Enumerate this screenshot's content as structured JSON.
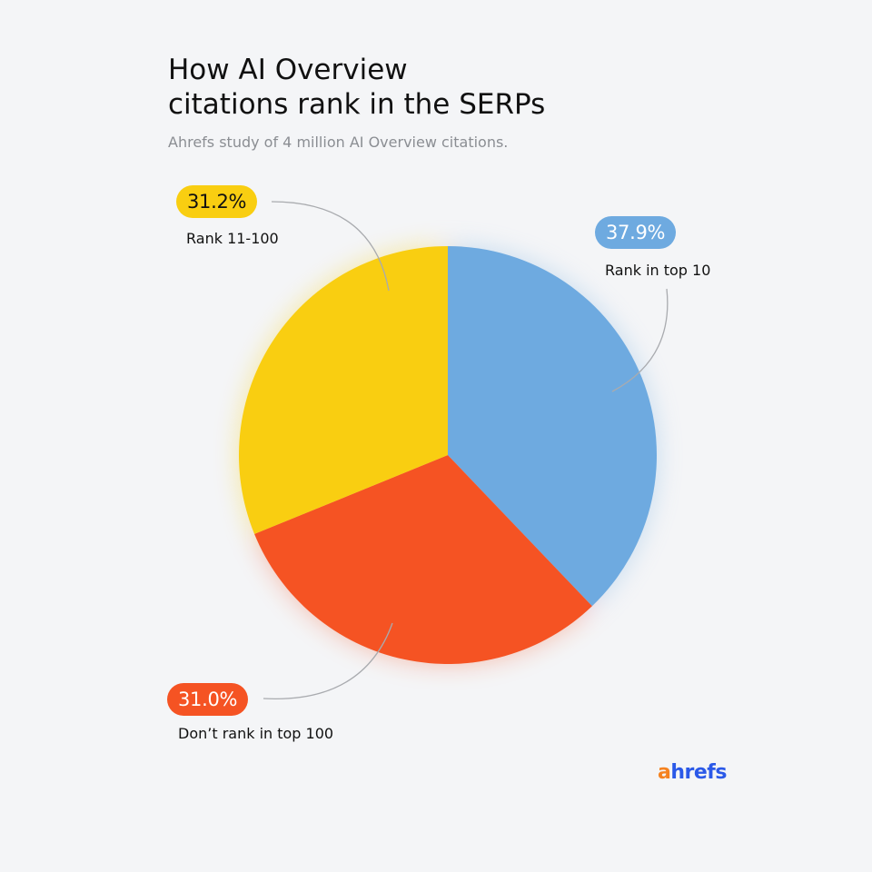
{
  "title_line1": "How AI Overview",
  "title_line2": "citations rank in the SERPs",
  "subtitle": "Ahrefs study of 4 million AI Overview citations.",
  "brand": {
    "first": "a",
    "rest": "hrefs",
    "first_color": "#f58220",
    "rest_color": "#2b59e8"
  },
  "chart_data": {
    "type": "pie",
    "start_angle_deg": 0,
    "direction": "clockwise",
    "slices": [
      {
        "label": "Rank in top 10",
        "value": 37.9,
        "display": "37.9%",
        "color": "#6eaae0",
        "text_color": "#ffffff"
      },
      {
        "label": "Don’t rank in top 100",
        "value": 31.0,
        "display": "31.0%",
        "color": "#f55323",
        "text_color": "#ffffff"
      },
      {
        "label": "Rank 11-100",
        "value": 31.2,
        "display": "31.2%",
        "color": "#f9ce11",
        "text_color": "#111111"
      }
    ]
  }
}
